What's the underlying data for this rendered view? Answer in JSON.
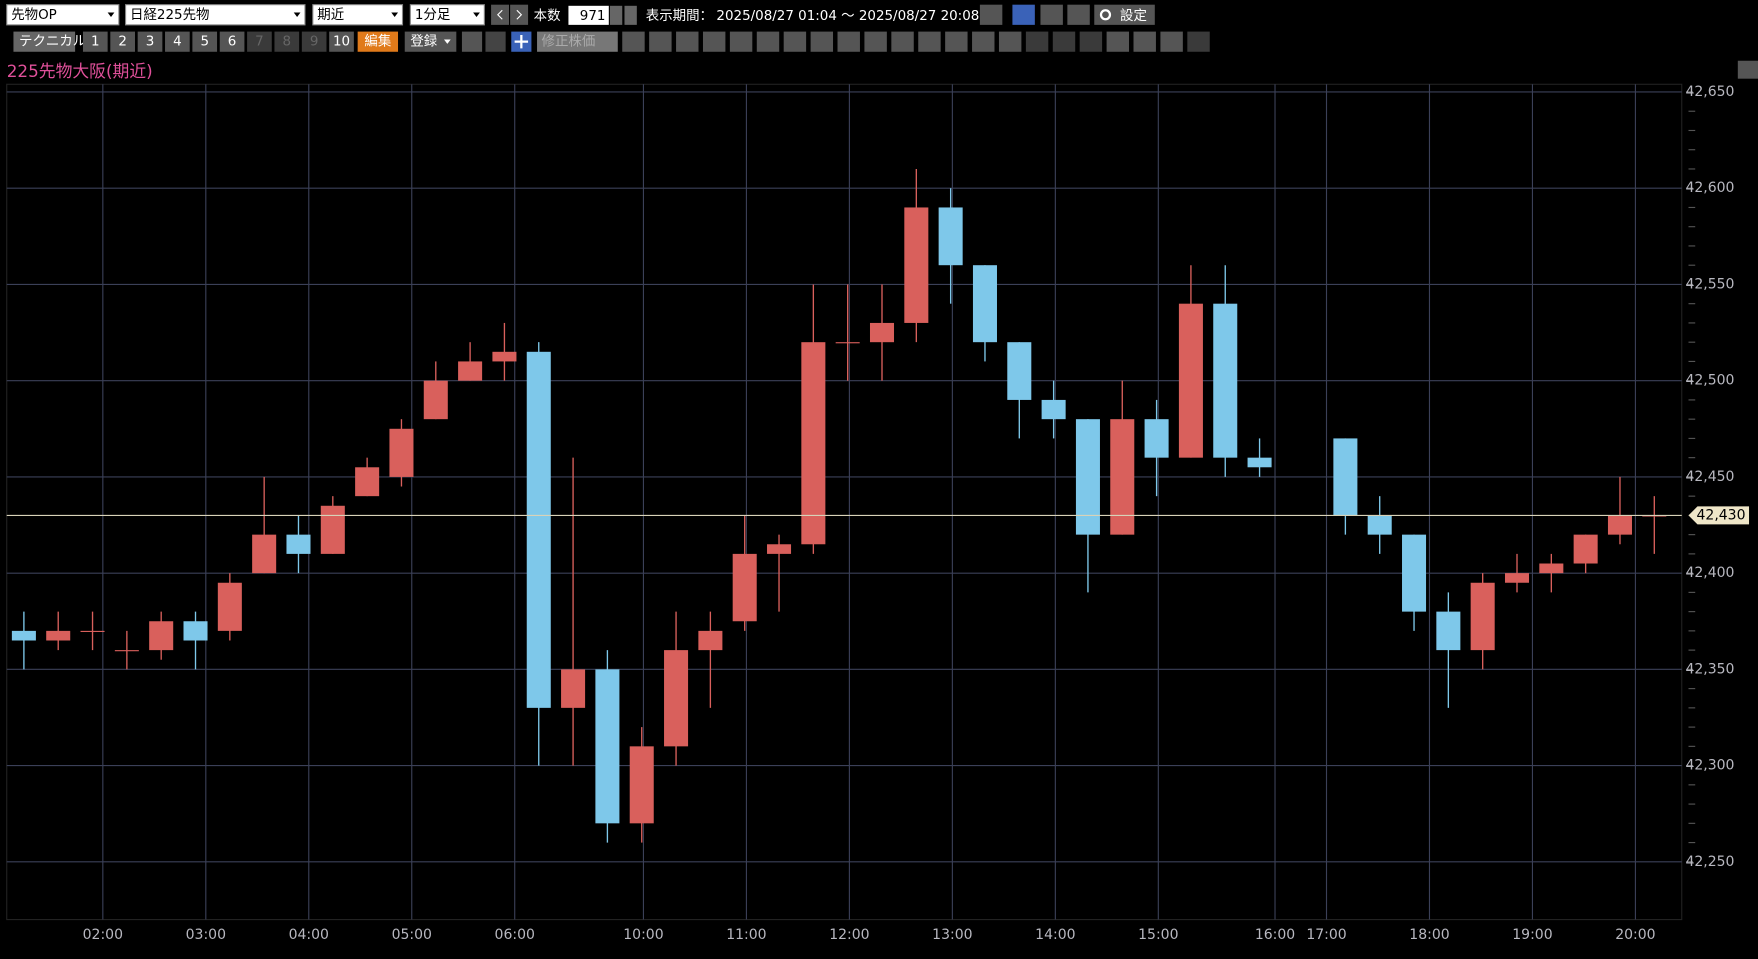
{
  "toolbar": {
    "market": "先物OP",
    "instrument": "日経225先物",
    "contract": "期近",
    "interval": "1分足",
    "count_label": "本数",
    "count": "971",
    "period_label": "表示期間：",
    "period": "2025/08/27 01:04 ～ 2025/08/27 20:08",
    "settings": "設定",
    "technical": "テクニカル",
    "slots": [
      "1",
      "2",
      "3",
      "4",
      "5",
      "6",
      "7",
      "8",
      "9",
      "10"
    ],
    "edit": "編集",
    "register": "登録",
    "adjusted": "修正株価"
  },
  "chart_data": {
    "type": "candlestick",
    "title": "225先物大阪(期近)",
    "x": [
      0,
      20,
      40,
      60,
      80,
      100,
      120,
      140,
      160,
      180,
      200,
      220,
      240,
      260,
      280,
      300,
      320,
      340,
      360,
      380,
      400,
      420,
      440,
      460,
      480,
      500,
      520,
      540,
      560,
      580,
      600,
      620,
      640,
      660,
      680,
      700,
      720,
      770,
      790,
      810,
      830,
      850,
      870,
      890,
      910,
      930,
      950
    ],
    "open": [
      42370,
      42365,
      42370,
      42360,
      42360,
      42375,
      42370,
      42400,
      42420,
      42410,
      42440,
      42450,
      42480,
      42500,
      42510,
      42515,
      42330,
      42350,
      42270,
      42310,
      42360,
      42375,
      42410,
      42415,
      42520,
      42520,
      42530,
      42590,
      42560,
      42520,
      42490,
      42480,
      42420,
      42480,
      42460,
      42540,
      42460,
      42470,
      42430,
      42420,
      42380,
      42360,
      42395,
      42400,
      42405,
      42420,
      42430
    ],
    "high": [
      42380,
      42380,
      42380,
      42370,
      42380,
      42380,
      42400,
      42450,
      42430,
      42440,
      42460,
      42480,
      42510,
      42520,
      42530,
      42520,
      42460,
      42360,
      42320,
      42380,
      42380,
      42430,
      42420,
      42550,
      42550,
      42550,
      42610,
      42600,
      42560,
      42520,
      42500,
      42480,
      42500,
      42490,
      42560,
      42560,
      42470,
      42470,
      42440,
      42420,
      42390,
      42400,
      42410,
      42410,
      42420,
      42450,
      42440
    ],
    "low": [
      42350,
      42360,
      42360,
      42350,
      42355,
      42350,
      42365,
      42400,
      42400,
      42410,
      42440,
      42445,
      42480,
      42500,
      42500,
      42300,
      42300,
      42260,
      42260,
      42300,
      42330,
      42370,
      42380,
      42410,
      42500,
      42500,
      42520,
      42540,
      42510,
      42470,
      42470,
      42390,
      42420,
      42440,
      42460,
      42450,
      42450,
      42420,
      42410,
      42370,
      42330,
      42350,
      42390,
      42390,
      42400,
      42415,
      42410
    ],
    "close": [
      42365,
      42370,
      42370,
      42360,
      42375,
      42365,
      42395,
      42420,
      42410,
      42435,
      42455,
      42475,
      42500,
      42510,
      42515,
      42330,
      42350,
      42270,
      42310,
      42360,
      42370,
      42410,
      42415,
      42520,
      42520,
      42530,
      42590,
      42560,
      42520,
      42490,
      42480,
      42420,
      42480,
      42460,
      42540,
      42460,
      42455,
      42430,
      42420,
      42380,
      42360,
      42395,
      42400,
      42405,
      42420,
      42430,
      42430
    ],
    "up_color": "#d9605c",
    "down_color": "#7ec8ea",
    "xlim": [
      0,
      976
    ],
    "xticks": [
      {
        "value": 56,
        "label": "02:00"
      },
      {
        "value": 116,
        "label": "03:00"
      },
      {
        "value": 176,
        "label": "04:00"
      },
      {
        "value": 236,
        "label": "05:00"
      },
      {
        "value": 296,
        "label": "06:00"
      },
      {
        "value": 371,
        "label": "10:00"
      },
      {
        "value": 431,
        "label": "11:00"
      },
      {
        "value": 491,
        "label": "12:00"
      },
      {
        "value": 551,
        "label": "13:00"
      },
      {
        "value": 611,
        "label": "14:00"
      },
      {
        "value": 671,
        "label": "15:00"
      },
      {
        "value": 739,
        "label": "16:00"
      },
      {
        "value": 769,
        "label": "17:00"
      },
      {
        "value": 829,
        "label": "18:00"
      },
      {
        "value": 889,
        "label": "19:00"
      },
      {
        "value": 949,
        "label": "20:00"
      }
    ],
    "ylim": [
      42220,
      42654
    ],
    "yticks": [
      {
        "value": 42250,
        "label": "42,250"
      },
      {
        "value": 42300,
        "label": "42,300"
      },
      {
        "value": 42350,
        "label": "42,350"
      },
      {
        "value": 42400,
        "label": "42,400"
      },
      {
        "value": 42450,
        "label": "42,450"
      },
      {
        "value": 42500,
        "label": "42,500"
      },
      {
        "value": 42550,
        "label": "42,550"
      },
      {
        "value": 42600,
        "label": "42,600"
      },
      {
        "value": 42650,
        "label": "42,650"
      }
    ],
    "grid": true,
    "last_price": 42430,
    "last_price_label": "42,430"
  }
}
